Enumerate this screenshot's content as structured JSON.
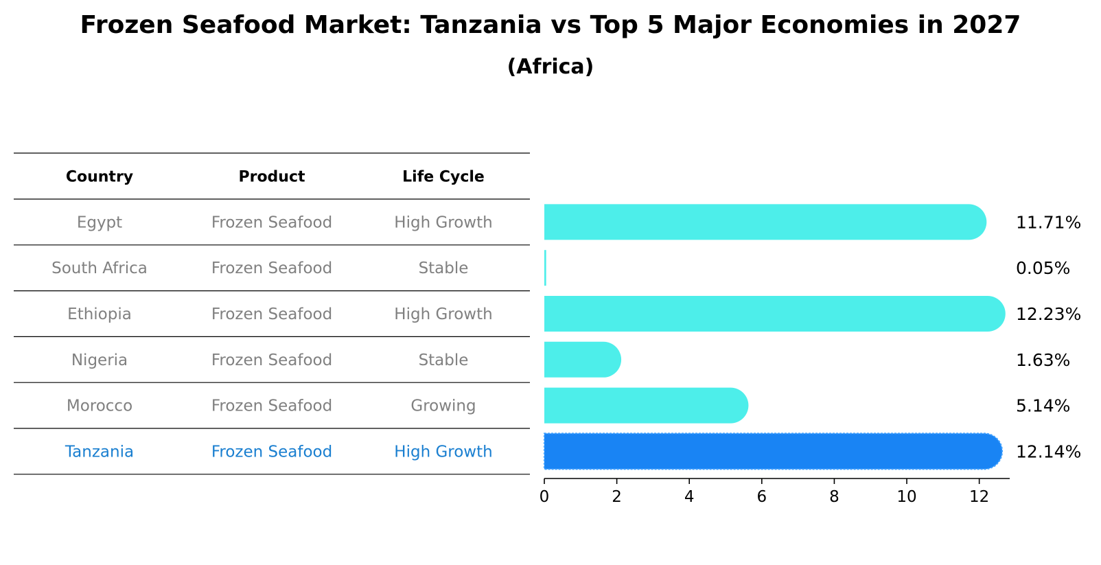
{
  "title": "Frozen Seafood Market: Tanzania vs Top 5 Major Economies in 2027",
  "subtitle": "(Africa)",
  "colors": {
    "bar": "#4DEEEA",
    "highlight_bar": "#1984F4",
    "highlight_text": "#1A7FD0",
    "muted_text": "#808080",
    "rule": "#000000"
  },
  "table": {
    "headers": [
      "Country",
      "Product",
      "Life Cycle"
    ],
    "rows": [
      {
        "country": "Egypt",
        "product": "Frozen Seafood",
        "life_cycle": "High Growth",
        "highlight": false
      },
      {
        "country": "South Africa",
        "product": "Frozen Seafood",
        "life_cycle": "Stable",
        "highlight": false
      },
      {
        "country": "Ethiopia",
        "product": "Frozen Seafood",
        "life_cycle": "High Growth",
        "highlight": false
      },
      {
        "country": "Nigeria",
        "product": "Frozen Seafood",
        "life_cycle": "Stable",
        "highlight": false
      },
      {
        "country": "Morocco",
        "product": "Frozen Seafood",
        "life_cycle": "Growing",
        "highlight": false
      },
      {
        "country": "Tanzania",
        "product": "Frozen Seafood",
        "life_cycle": "High Growth",
        "highlight": true
      }
    ]
  },
  "chart_data": {
    "type": "bar",
    "orientation": "horizontal",
    "title": "Frozen Seafood Market: Tanzania vs Top 5 Major Economies in 2027",
    "subtitle": "(Africa)",
    "categories": [
      "Egypt",
      "South Africa",
      "Ethiopia",
      "Nigeria",
      "Morocco",
      "Tanzania"
    ],
    "values": [
      11.71,
      0.05,
      12.23,
      1.63,
      5.14,
      12.14
    ],
    "value_labels": [
      "11.71%",
      "0.05%",
      "12.23%",
      "1.63%",
      "5.14%",
      "12.14%"
    ],
    "highlight_category": "Tanzania",
    "xlim": [
      0,
      12.84
    ],
    "xticks": [
      0,
      2,
      4,
      6,
      8,
      10,
      12
    ],
    "xlabel": "",
    "ylabel": "",
    "grid": false,
    "legend": "none"
  }
}
